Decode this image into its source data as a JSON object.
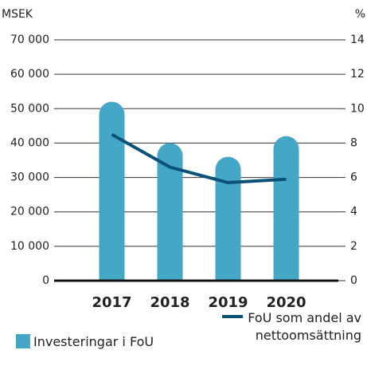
{
  "chart_data": {
    "type": "bar_line",
    "y_label": "MSEK",
    "y2_label": "%",
    "categories": [
      "2017",
      "2018",
      "2019",
      "2020"
    ],
    "series": [
      {
        "name": "Investeringar i FoU",
        "type": "bar",
        "color": "#45a7c6",
        "values": [
          52000,
          40000,
          36000,
          42000
        ]
      },
      {
        "name": "FoU som andel av nettoomsättning",
        "type": "line",
        "axis": "y2",
        "color": "#0a5278",
        "values": [
          8.5,
          6.6,
          5.7,
          5.9
        ]
      }
    ],
    "ylim": [
      0,
      70000
    ],
    "yticks": [
      0,
      {
        "value": 10000,
        "label": "10 000"
      },
      {
        "value": 20000,
        "label": "20 000"
      },
      {
        "value": 30000,
        "label": "30 000"
      },
      {
        "value": 40000,
        "label": "40 000"
      },
      {
        "value": 50000,
        "label": "50 000"
      },
      {
        "value": 60000,
        "label": "60 000"
      },
      {
        "value": 70000,
        "label": "70 000"
      }
    ],
    "y2lim": [
      0,
      14
    ],
    "y2ticks": [
      0,
      2,
      4,
      6,
      8,
      10,
      12,
      14
    ],
    "grid": true
  }
}
